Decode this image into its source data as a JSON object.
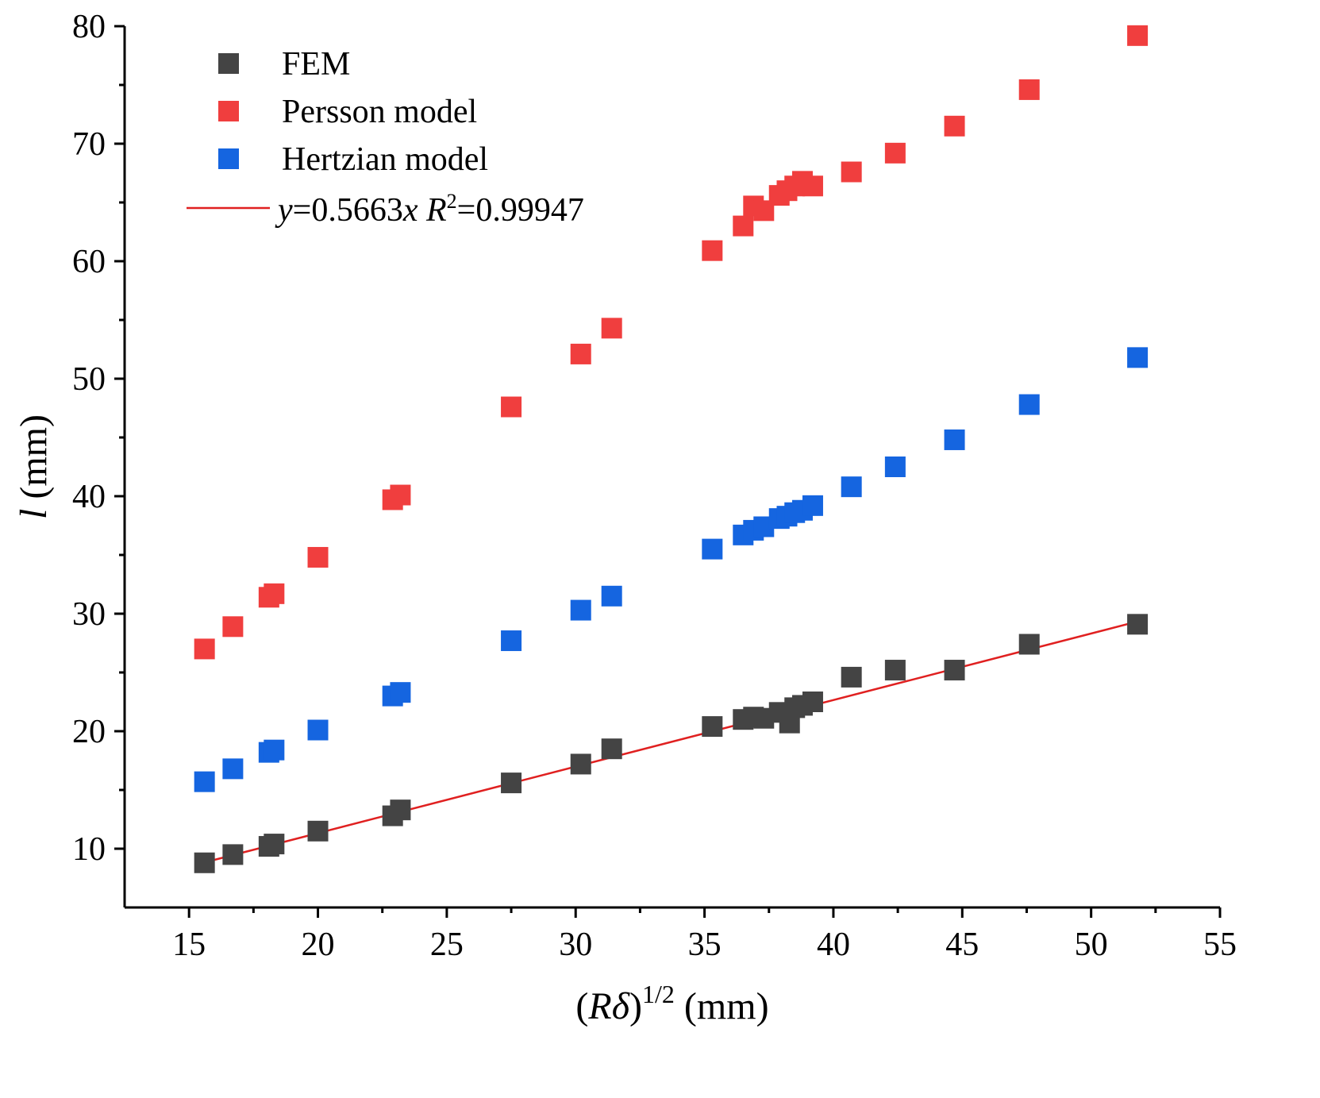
{
  "chart_data": {
    "type": "scatter",
    "title": "",
    "xlabel": {
      "open": "(",
      "R": "R",
      "delta": "δ",
      "close": ")",
      "exp": "1/2",
      "unit": "(mm)"
    },
    "ylabel": {
      "var": "l",
      "unit": "(mm)"
    },
    "xlim": [
      12.5,
      55
    ],
    "ylim": [
      5,
      80
    ],
    "xticks": [
      15,
      20,
      25,
      30,
      35,
      40,
      45,
      50,
      55
    ],
    "xticks_minor": [
      17.5,
      22.5,
      27.5,
      32.5,
      37.5,
      42.5,
      47.5,
      52.5
    ],
    "yticks": [
      10,
      20,
      30,
      40,
      50,
      60,
      70,
      80
    ],
    "yticks_minor": [
      15,
      25,
      35,
      45,
      55,
      65,
      75
    ],
    "grid": false,
    "legend_position": "top-left",
    "series": [
      {
        "name": "FEM",
        "color": "#444444",
        "marker": "square",
        "x": [
          15.6,
          16.7,
          18.1,
          18.3,
          20.0,
          22.9,
          23.2,
          27.5,
          30.2,
          31.4,
          35.3,
          36.5,
          36.9,
          37.3,
          37.9,
          38.3,
          38.5,
          38.8,
          39.2,
          40.7,
          42.4,
          44.7,
          47.6,
          51.8
        ],
        "y": [
          8.8,
          9.5,
          10.2,
          10.4,
          11.5,
          12.8,
          13.3,
          15.6,
          17.2,
          18.5,
          20.4,
          21.0,
          21.2,
          21.1,
          21.6,
          20.7,
          22.0,
          22.2,
          22.5,
          24.6,
          25.2,
          25.2,
          27.4,
          29.1
        ]
      },
      {
        "name": "Persson model",
        "color": "#f03e3e",
        "marker": "square",
        "x": [
          15.6,
          16.7,
          18.1,
          18.3,
          20.0,
          22.9,
          23.2,
          27.5,
          30.2,
          31.4,
          35.3,
          36.5,
          36.9,
          37.3,
          37.9,
          38.2,
          38.5,
          38.8,
          39.2,
          40.7,
          42.4,
          44.7,
          47.6,
          51.8
        ],
        "y": [
          27.0,
          28.9,
          31.4,
          31.7,
          34.8,
          39.7,
          40.1,
          47.6,
          52.1,
          54.3,
          60.9,
          63.0,
          64.7,
          64.3,
          65.6,
          66.0,
          66.4,
          66.8,
          66.4,
          67.6,
          69.2,
          71.5,
          74.6,
          79.2
        ]
      },
      {
        "name": "Hertzian model",
        "color": "#1565e0",
        "marker": "square",
        "x": [
          15.6,
          16.7,
          18.1,
          18.3,
          20.0,
          22.9,
          23.2,
          27.5,
          30.2,
          31.4,
          35.3,
          36.5,
          36.9,
          37.3,
          37.9,
          38.2,
          38.5,
          38.8,
          39.2,
          40.7,
          42.4,
          44.7,
          47.6,
          51.8
        ],
        "y": [
          15.7,
          16.8,
          18.2,
          18.4,
          20.1,
          23.0,
          23.3,
          27.7,
          30.3,
          31.5,
          35.5,
          36.7,
          37.1,
          37.4,
          38.1,
          38.3,
          38.6,
          38.8,
          39.2,
          40.8,
          42.5,
          44.8,
          47.8,
          51.8
        ]
      }
    ],
    "fit": {
      "name": "y=0.5663x R²=0.99947",
      "label": {
        "y": "y",
        "eq": "=0.5663",
        "x": "x",
        "R": "R",
        "sup": "2",
        "r2": "=0.99947"
      },
      "color": "#e02020",
      "slope": 0.5663,
      "x_range": [
        15.6,
        51.8
      ]
    }
  }
}
